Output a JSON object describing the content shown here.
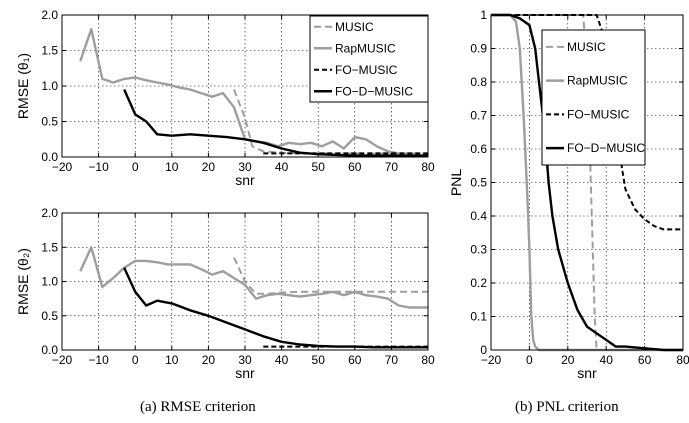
{
  "legend_labels": [
    "MUSIC",
    "RapMUSIC",
    "FO−MUSIC",
    "FO−D−MUSIC"
  ],
  "captions": {
    "left": "(a) RMSE criterion",
    "right": "(b) PNL criterion"
  },
  "styles": {
    "MUSIC": {
      "color": "#9e9e9e",
      "dash": "7 4",
      "width": 2
    },
    "RapMUSIC": {
      "color": "#9e9e9e",
      "dash": "",
      "width": 2.4
    },
    "FO−MUSIC": {
      "color": "#000000",
      "dash": "5 3",
      "width": 2
    },
    "FO−D−MUSIC": {
      "color": "#000000",
      "dash": "",
      "width": 2.4
    }
  },
  "chart_data": [
    {
      "type": "line",
      "id": "rmse-theta1",
      "xlabel": "snr",
      "ylabel": "RMSE (θ₁)",
      "xlim": [
        -20,
        80
      ],
      "ylim": [
        0,
        2
      ],
      "xticks": [
        -20,
        -10,
        0,
        10,
        20,
        30,
        40,
        50,
        60,
        70,
        80
      ],
      "yticks": [
        0.0,
        0.5,
        1.0,
        1.5,
        2.0
      ],
      "xtick_labels": [
        "−20",
        "−10",
        "0",
        "10",
        "20",
        "30",
        "40",
        "50",
        "60",
        "70",
        "80"
      ],
      "ytick_labels": [
        "0.0",
        "0.5",
        "1.0",
        "1.5",
        "2.0"
      ],
      "grid": true,
      "legend": "top-right",
      "series": [
        {
          "name": "MUSIC",
          "x": [
            27,
            30,
            32,
            35,
            40,
            45,
            50,
            55,
            60,
            65,
            70,
            75,
            80
          ],
          "y": [
            0.95,
            0.55,
            0.15,
            0.08,
            0.06,
            0.05,
            0.05,
            0.05,
            0.05,
            0.05,
            0.05,
            0.05,
            0.05
          ]
        },
        {
          "name": "RapMUSIC",
          "x": [
            -15,
            -12,
            -9,
            -6,
            -3,
            0,
            3,
            6,
            9,
            12,
            15,
            18,
            21,
            24,
            27,
            30,
            33,
            36,
            39,
            42,
            45,
            48,
            51,
            54,
            57,
            60,
            63,
            66,
            69,
            72
          ],
          "y": [
            1.35,
            1.8,
            1.1,
            1.05,
            1.1,
            1.12,
            1.08,
            1.05,
            1.02,
            0.98,
            0.95,
            0.9,
            0.85,
            0.9,
            0.7,
            0.25,
            0.22,
            0.2,
            0.15,
            0.2,
            0.18,
            0.2,
            0.15,
            0.22,
            0.12,
            0.28,
            0.25,
            0.15,
            0.08,
            0.05
          ]
        },
        {
          "name": "FO−MUSIC",
          "x": [
            35,
            38,
            40,
            45,
            50,
            55,
            60,
            65,
            70,
            75,
            80
          ],
          "y": [
            0.05,
            0.05,
            0.05,
            0.05,
            0.05,
            0.05,
            0.05,
            0.05,
            0.05,
            0.05,
            0.05
          ]
        },
        {
          "name": "FO−D−MUSIC",
          "x": [
            -3,
            0,
            3,
            6,
            10,
            15,
            20,
            25,
            30,
            35,
            40,
            45,
            50,
            55,
            60,
            65,
            70,
            75,
            80
          ],
          "y": [
            0.95,
            0.6,
            0.5,
            0.32,
            0.3,
            0.32,
            0.3,
            0.28,
            0.25,
            0.2,
            0.12,
            0.06,
            0.04,
            0.03,
            0.02,
            0.02,
            0.02,
            0.02,
            0.02
          ]
        }
      ]
    },
    {
      "type": "line",
      "id": "rmse-theta2",
      "xlabel": "snr",
      "ylabel": "RMSE (θ₂)",
      "xlim": [
        -20,
        80
      ],
      "ylim": [
        0,
        2
      ],
      "xticks": [
        -20,
        -10,
        0,
        10,
        20,
        30,
        40,
        50,
        60,
        70,
        80
      ],
      "yticks": [
        0.0,
        0.5,
        1.0,
        1.5,
        2.0
      ],
      "xtick_labels": [
        "−20",
        "−10",
        "0",
        "10",
        "20",
        "30",
        "40",
        "50",
        "60",
        "70",
        "80"
      ],
      "ytick_labels": [
        "0.0",
        "0.5",
        "1.0",
        "1.5",
        "2.0"
      ],
      "grid": true,
      "series": [
        {
          "name": "MUSIC",
          "x": [
            27,
            30,
            33,
            36,
            40,
            45,
            50,
            55,
            60,
            65,
            70,
            75,
            80
          ],
          "y": [
            1.35,
            1.0,
            0.82,
            0.82,
            0.84,
            0.85,
            0.85,
            0.85,
            0.85,
            0.85,
            0.85,
            0.85,
            0.85
          ]
        },
        {
          "name": "RapMUSIC",
          "x": [
            -15,
            -12,
            -9,
            -6,
            -3,
            0,
            3,
            6,
            9,
            12,
            15,
            18,
            21,
            24,
            27,
            30,
            33,
            36,
            39,
            42,
            45,
            48,
            51,
            54,
            57,
            60,
            63,
            66,
            69,
            72,
            75,
            80
          ],
          "y": [
            1.15,
            1.5,
            0.92,
            1.05,
            1.2,
            1.3,
            1.3,
            1.28,
            1.25,
            1.25,
            1.25,
            1.18,
            1.1,
            1.15,
            1.05,
            0.95,
            0.75,
            0.8,
            0.82,
            0.8,
            0.78,
            0.8,
            0.82,
            0.85,
            0.8,
            0.85,
            0.8,
            0.78,
            0.75,
            0.65,
            0.62,
            0.62
          ]
        },
        {
          "name": "FO−MUSIC",
          "x": [
            35,
            40,
            45,
            50,
            55,
            60,
            65,
            70,
            75,
            80
          ],
          "y": [
            0.05,
            0.05,
            0.05,
            0.05,
            0.05,
            0.05,
            0.05,
            0.05,
            0.05,
            0.05
          ]
        },
        {
          "name": "FO−D−MUSIC",
          "x": [
            -3,
            0,
            3,
            6,
            10,
            15,
            20,
            25,
            30,
            35,
            40,
            45,
            50,
            55,
            60,
            65,
            70,
            75,
            80
          ],
          "y": [
            1.2,
            0.85,
            0.65,
            0.72,
            0.68,
            0.58,
            0.5,
            0.4,
            0.3,
            0.2,
            0.12,
            0.08,
            0.06,
            0.05,
            0.05,
            0.04,
            0.04,
            0.04,
            0.04
          ]
        }
      ]
    },
    {
      "type": "line",
      "id": "pnl",
      "xlabel": "snr",
      "ylabel": "PNL",
      "xlim": [
        -20,
        80
      ],
      "ylim": [
        0,
        1
      ],
      "xticks": [
        -20,
        0,
        20,
        40,
        60,
        80
      ],
      "yticks": [
        0.0,
        0.1,
        0.2,
        0.3,
        0.4,
        0.5,
        0.6,
        0.7,
        0.8,
        0.9,
        1.0
      ],
      "xtick_labels": [
        "−20",
        "0",
        "20",
        "40",
        "60",
        "80"
      ],
      "ytick_labels": [
        "0",
        "0.1",
        "0.2",
        "0.3",
        "0.4",
        "0.5",
        "0.6",
        "0.7",
        "0.8",
        "0.9",
        "1"
      ],
      "grid": true,
      "legend": "top-right",
      "series": [
        {
          "name": "MUSIC",
          "x": [
            -20,
            28,
            30,
            31,
            32,
            33,
            34,
            35,
            80
          ],
          "y": [
            1.0,
            1.0,
            0.85,
            0.7,
            0.5,
            0.3,
            0.1,
            0.0,
            0.0
          ]
        },
        {
          "name": "RapMUSIC",
          "x": [
            -20,
            -10,
            -7,
            -5,
            -3,
            -1,
            0,
            1,
            2,
            3,
            5,
            80
          ],
          "y": [
            1.0,
            1.0,
            0.98,
            0.9,
            0.7,
            0.45,
            0.3,
            0.1,
            0.03,
            0.01,
            0.0,
            0.0
          ]
        },
        {
          "name": "FO−MUSIC",
          "x": [
            -20,
            35,
            38,
            40,
            42,
            44,
            46,
            48,
            50,
            55,
            60,
            65,
            70,
            75,
            80
          ],
          "y": [
            1.0,
            1.0,
            0.95,
            0.9,
            0.8,
            0.72,
            0.62,
            0.55,
            0.48,
            0.42,
            0.39,
            0.37,
            0.36,
            0.36,
            0.36
          ]
        },
        {
          "name": "FO−D−MUSIC",
          "x": [
            -20,
            -10,
            -5,
            0,
            3,
            5,
            8,
            10,
            12,
            15,
            20,
            25,
            30,
            35,
            40,
            45,
            50,
            60,
            70,
            80
          ],
          "y": [
            1.0,
            1.0,
            0.99,
            0.97,
            0.9,
            0.8,
            0.65,
            0.5,
            0.4,
            0.3,
            0.2,
            0.12,
            0.07,
            0.05,
            0.03,
            0.01,
            0.01,
            0.005,
            0.0,
            0.0
          ]
        }
      ]
    }
  ]
}
